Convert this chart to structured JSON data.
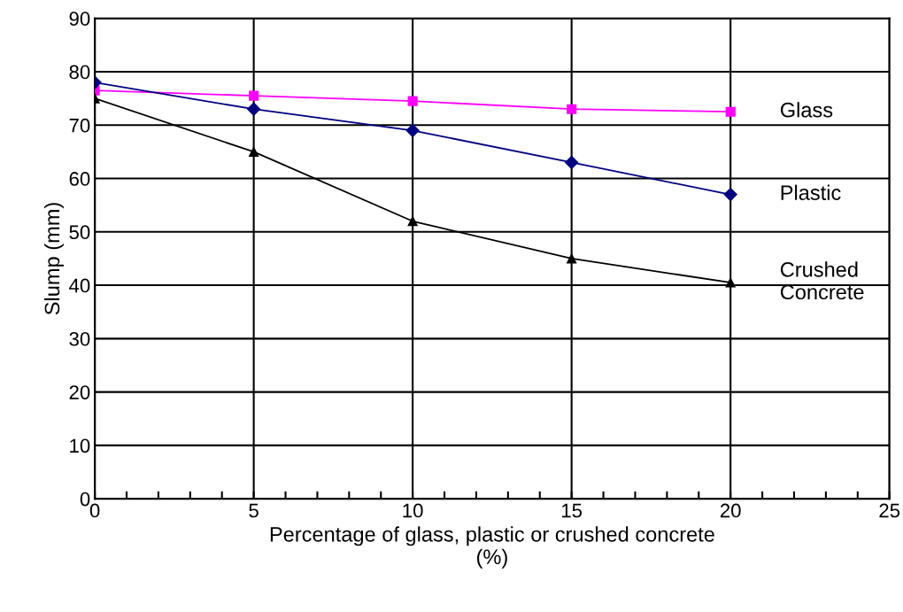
{
  "chart_data": {
    "type": "line",
    "xlabel": "Percentage of glass, plastic or crushed concrete\n(%)",
    "ylabel": "Slump (mm)",
    "x": [
      0,
      5,
      10,
      15,
      20
    ],
    "series": [
      {
        "name": "Glass",
        "color": "#ff00ff",
        "marker": "square",
        "values": [
          76.5,
          75.5,
          74.5,
          73,
          72.5
        ]
      },
      {
        "name": "Plastic",
        "color": "#000080",
        "marker": "diamond",
        "values": [
          78,
          73,
          69,
          63,
          57
        ]
      },
      {
        "name": "Crushed\nConcrete",
        "color": "#000000",
        "marker": "triangle",
        "values": [
          75,
          65,
          52,
          45,
          40.5
        ]
      }
    ],
    "xlim": [
      0,
      25
    ],
    "xticks": [
      0,
      5,
      10,
      15,
      20,
      25
    ],
    "ylim": [
      0,
      90
    ],
    "yticks": [
      0,
      10,
      20,
      30,
      40,
      50,
      60,
      70,
      80,
      90
    ],
    "grid": true,
    "line_style": "solid"
  }
}
